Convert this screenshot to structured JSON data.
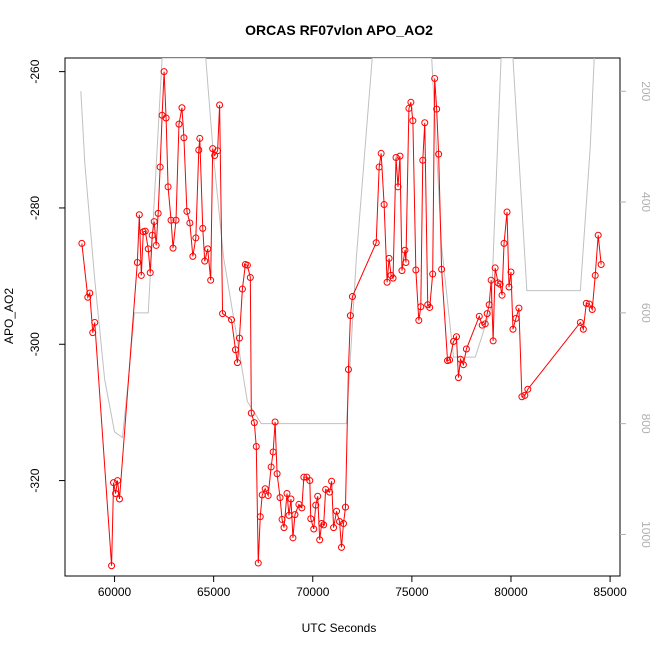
{
  "chart_data": {
    "type": "line",
    "title": "ORCAS RF07vlon APO_AO2",
    "xlabel": "UTC Seconds",
    "ylabel": "APO_AO2",
    "xlim": [
      57500,
      85500
    ],
    "ylim": [
      -334,
      -258
    ],
    "y2lim": [
      1075,
      140
    ],
    "x_ticks": [
      60000,
      65000,
      70000,
      75000,
      80000,
      85000
    ],
    "y_ticks": [
      -260,
      -280,
      -300,
      -320
    ],
    "y2_ticks": [
      200,
      400,
      600,
      800,
      1000
    ],
    "grid": false,
    "series": [
      {
        "role": "primary",
        "color": "#ff0000",
        "marker": "open-circle",
        "points": [
          [
            58350,
            -285.2
          ],
          [
            58650,
            -293.1
          ],
          [
            58750,
            -292.5
          ],
          [
            58900,
            -298.3
          ],
          [
            59000,
            -296.8
          ],
          [
            59850,
            -332.5
          ],
          [
            59950,
            -320.3
          ],
          [
            60050,
            -321.9
          ],
          [
            60150,
            -320.0
          ],
          [
            60250,
            -322.7
          ],
          [
            61150,
            -288.0
          ],
          [
            61250,
            -281.0
          ],
          [
            61350,
            -289.9
          ],
          [
            61450,
            -283.5
          ],
          [
            61550,
            -283.4
          ],
          [
            61700,
            -286.0
          ],
          [
            61800,
            -289.5
          ],
          [
            61900,
            -284.0
          ],
          [
            62000,
            -282.0
          ],
          [
            62100,
            -285.5
          ],
          [
            62200,
            -280.8
          ],
          [
            62300,
            -274.0
          ],
          [
            62400,
            -266.4
          ],
          [
            62500,
            -260.0
          ],
          [
            62600,
            -266.8
          ],
          [
            62700,
            -276.9
          ],
          [
            62850,
            -281.8
          ],
          [
            62950,
            -285.9
          ],
          [
            63100,
            -281.8
          ],
          [
            63250,
            -267.7
          ],
          [
            63400,
            -265.3
          ],
          [
            63500,
            -269.7
          ],
          [
            63650,
            -280.5
          ],
          [
            63800,
            -282.2
          ],
          [
            63950,
            -287.1
          ],
          [
            64100,
            -284.4
          ],
          [
            64250,
            -271.5
          ],
          [
            64300,
            -269.8
          ],
          [
            64450,
            -283.0
          ],
          [
            64550,
            -287.8
          ],
          [
            64700,
            -286.0
          ],
          [
            64850,
            -290.6
          ],
          [
            64950,
            -271.3
          ],
          [
            65050,
            -272.3
          ],
          [
            65200,
            -271.6
          ],
          [
            65300,
            -264.9
          ],
          [
            65450,
            -295.5
          ],
          [
            65900,
            -296.4
          ],
          [
            66100,
            -300.8
          ],
          [
            66200,
            -302.7
          ],
          [
            66300,
            -299.1
          ],
          [
            66450,
            -291.9
          ],
          [
            66600,
            -288.3
          ],
          [
            66700,
            -288.4
          ],
          [
            66850,
            -290.2
          ],
          [
            66900,
            -310.1
          ],
          [
            67050,
            -311.5
          ],
          [
            67150,
            -315.0
          ],
          [
            67250,
            -332.1
          ],
          [
            67350,
            -325.3
          ],
          [
            67450,
            -322.1
          ],
          [
            67600,
            -321.2
          ],
          [
            67750,
            -322.2
          ],
          [
            67900,
            -318.0
          ],
          [
            68000,
            -315.8
          ],
          [
            68100,
            -311.4
          ],
          [
            68200,
            -319.0
          ],
          [
            68350,
            -322.5
          ],
          [
            68450,
            -325.7
          ],
          [
            68550,
            -326.9
          ],
          [
            68700,
            -321.9
          ],
          [
            68800,
            -325.1
          ],
          [
            68900,
            -322.7
          ],
          [
            69000,
            -328.4
          ],
          [
            69100,
            -325.0
          ],
          [
            69300,
            -323.5
          ],
          [
            69450,
            -324.0
          ],
          [
            69550,
            -319.5
          ],
          [
            69700,
            -319.5
          ],
          [
            69850,
            -320.0
          ],
          [
            69900,
            -325.6
          ],
          [
            70050,
            -327.1
          ],
          [
            70150,
            -323.6
          ],
          [
            70250,
            -322.3
          ],
          [
            70350,
            -328.7
          ],
          [
            70450,
            -326.3
          ],
          [
            70550,
            -326.5
          ],
          [
            70650,
            -321.3
          ],
          [
            70850,
            -321.7
          ],
          [
            70950,
            -320.1
          ],
          [
            71050,
            -326.9
          ],
          [
            71200,
            -324.5
          ],
          [
            71350,
            -326.0
          ],
          [
            71450,
            -329.8
          ],
          [
            71550,
            -326.3
          ],
          [
            71650,
            -323.9
          ],
          [
            71800,
            -303.7
          ],
          [
            71900,
            -295.8
          ],
          [
            72000,
            -293.0
          ],
          [
            73200,
            -285.1
          ],
          [
            73350,
            -274.0
          ],
          [
            73450,
            -272.0
          ],
          [
            73600,
            -279.5
          ],
          [
            73750,
            -290.9
          ],
          [
            73850,
            -287.4
          ],
          [
            73950,
            -289.9
          ],
          [
            74050,
            -290.3
          ],
          [
            74200,
            -272.6
          ],
          [
            74300,
            -276.9
          ],
          [
            74400,
            -272.4
          ],
          [
            74500,
            -289.2
          ],
          [
            74650,
            -286.2
          ],
          [
            74700,
            -288.0
          ],
          [
            74850,
            -265.4
          ],
          [
            74950,
            -264.5
          ],
          [
            75050,
            -267.2
          ],
          [
            75200,
            -289.1
          ],
          [
            75350,
            -296.5
          ],
          [
            75450,
            -294.5
          ],
          [
            75550,
            -273.0
          ],
          [
            75650,
            -267.5
          ],
          [
            75800,
            -294.2
          ],
          [
            75900,
            -294.6
          ],
          [
            76050,
            -289.7
          ],
          [
            76150,
            -261.0
          ],
          [
            76250,
            -265.5
          ],
          [
            76350,
            -272.1
          ],
          [
            76500,
            -289.0
          ],
          [
            76800,
            -302.4
          ],
          [
            76900,
            -302.3
          ],
          [
            77100,
            -299.6
          ],
          [
            77250,
            -298.9
          ],
          [
            77350,
            -304.9
          ],
          [
            77450,
            -302.2
          ],
          [
            77600,
            -303.0
          ],
          [
            77750,
            -300.7
          ],
          [
            78400,
            -295.9
          ],
          [
            78550,
            -297.2
          ],
          [
            78700,
            -297.0
          ],
          [
            78800,
            -295.5
          ],
          [
            78900,
            -294.2
          ],
          [
            79000,
            -290.6
          ],
          [
            79100,
            -299.5
          ],
          [
            79200,
            -288.8
          ],
          [
            79350,
            -291.0
          ],
          [
            79450,
            -291.2
          ],
          [
            79550,
            -292.8
          ],
          [
            79650,
            -285.2
          ],
          [
            79800,
            -280.6
          ],
          [
            79900,
            -291.6
          ],
          [
            80000,
            -289.4
          ],
          [
            80100,
            -297.8
          ],
          [
            80250,
            -296.2
          ],
          [
            80400,
            -294.7
          ],
          [
            80550,
            -307.7
          ],
          [
            80700,
            -307.5
          ],
          [
            80850,
            -306.6
          ],
          [
            83500,
            -296.8
          ],
          [
            83650,
            -297.8
          ],
          [
            83800,
            -294.0
          ],
          [
            83950,
            -294.1
          ],
          [
            84100,
            -294.9
          ],
          [
            84250,
            -289.9
          ],
          [
            84400,
            -284.0
          ],
          [
            84550,
            -288.3
          ]
        ]
      },
      {
        "role": "secondary",
        "axis": "right",
        "color": "#c0c0c0",
        "marker": "none",
        "points": [
          [
            58300,
            200
          ],
          [
            58500,
            330
          ],
          [
            59000,
            540
          ],
          [
            59500,
            720
          ],
          [
            60000,
            815
          ],
          [
            60400,
            825
          ],
          [
            60700,
            720
          ],
          [
            61000,
            600
          ],
          [
            61300,
            600
          ],
          [
            61700,
            600
          ],
          [
            62000,
            400
          ],
          [
            62400,
            140
          ],
          [
            64600,
            140
          ],
          [
            65000,
            320
          ],
          [
            65500,
            500
          ],
          [
            66200,
            650
          ],
          [
            66700,
            760
          ],
          [
            67400,
            800
          ],
          [
            70000,
            800
          ],
          [
            71700,
            800
          ],
          [
            72200,
            500
          ],
          [
            73000,
            140
          ],
          [
            76000,
            140
          ],
          [
            76500,
            480
          ],
          [
            77100,
            680
          ],
          [
            78200,
            680
          ],
          [
            79000,
            590
          ],
          [
            79500,
            140
          ],
          [
            80100,
            140
          ],
          [
            80800,
            560
          ],
          [
            83500,
            560
          ],
          [
            84000,
            300
          ],
          [
            84200,
            140
          ]
        ]
      }
    ]
  }
}
